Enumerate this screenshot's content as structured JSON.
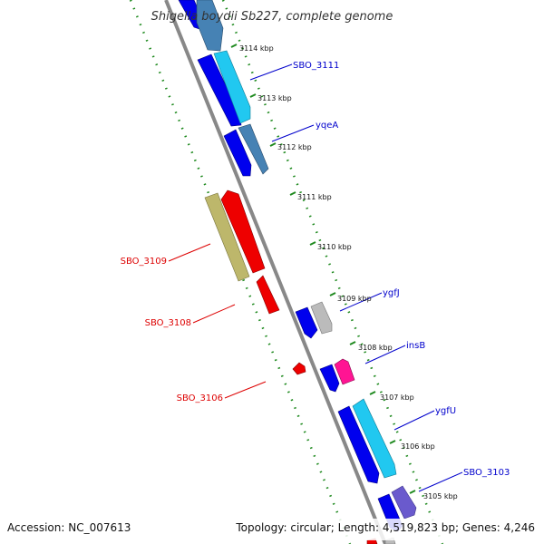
{
  "title": "Shigella boydii Sb227, complete genome",
  "footer": {
    "accession": "Accession: NC_007613",
    "summary": "Topology: circular; Length: 4,519,823 bp; Genes: 4,246"
  },
  "ticks": [
    "3114 kbp",
    "3113 kbp",
    "3112 kbp",
    "3111 kbp",
    "3110 kbp",
    "3109 kbp",
    "3108 kbp",
    "3107 kbp",
    "3106 kbp",
    "3105 kbp"
  ],
  "gene_labels": {
    "right": [
      "SBO_3111",
      "yqeA",
      "ygfJ",
      "insB",
      "ygfU",
      "SBO_3103"
    ],
    "left": [
      "SBO_3109",
      "SBO_3108",
      "SBO_3106"
    ]
  },
  "colors": {
    "backbone": "#888888",
    "dotted_track": "#1f8a1f",
    "cds_blue": "#0000ee",
    "cds_cyan": "#21c8f0",
    "cds_steel": "#4682b4",
    "cds_red": "#ee0000",
    "cds_khaki": "#bdb76b",
    "cds_gray": "#bbbbbb",
    "cds_magenta": "#ff1493",
    "cds_purple": "#6a5acd",
    "label_right": "#0000cc",
    "label_left": "#dd0000"
  }
}
